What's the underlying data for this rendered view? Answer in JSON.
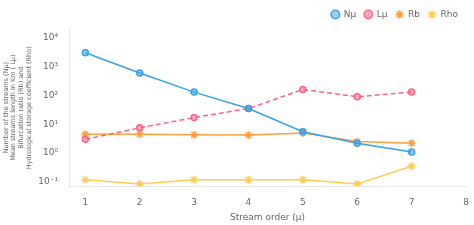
{
  "chart_data": {
    "type": "line",
    "xlabel": "Stream order (μ)",
    "ylabel": [
      "Number of the streams (Nμ)",
      "Mean streams length in Km ( Lμ)",
      "Bifurcation ratio (Rb) and",
      "Hydrological storage coefficient (Rho)"
    ],
    "x": [
      1,
      2,
      3,
      4,
      5,
      6,
      7
    ],
    "series": [
      {
        "name": "Nμ",
        "values": [
          3000,
          600,
          130,
          35,
          5.5,
          2.2,
          1.1
        ],
        "marker": "circle",
        "line_style": "solid"
      },
      {
        "name": "Lμ",
        "values": [
          3.0,
          7.5,
          17,
          35,
          160,
          90,
          130
        ],
        "marker": "circle",
        "line_style": "dashed"
      },
      {
        "name": "Rb",
        "values": [
          4.5,
          4.5,
          4.3,
          4.2,
          5.0,
          2.5,
          2.2
        ],
        "marker": "star",
        "line_style": "solid"
      },
      {
        "name": "Rho",
        "values": [
          0.12,
          0.085,
          0.12,
          0.12,
          0.12,
          0.085,
          0.35
        ],
        "marker": "star",
        "line_style": "solid"
      }
    ],
    "xlim": [
      0.7,
      8.0
    ],
    "xticks": [
      1,
      2,
      3,
      4,
      5,
      6,
      7,
      8
    ],
    "ylim": [
      0.07,
      20000
    ],
    "yticks": [
      {
        "value": 0.1,
        "label": "10⁻¹"
      },
      {
        "value": 1,
        "label": "10⁰"
      },
      {
        "value": 10,
        "label": "10¹"
      },
      {
        "value": 100,
        "label": "10²"
      },
      {
        "value": 1000,
        "label": "10³"
      },
      {
        "value": 10000,
        "label": "10⁴"
      }
    ],
    "log": "y",
    "grid": false,
    "legend": "upper right"
  }
}
